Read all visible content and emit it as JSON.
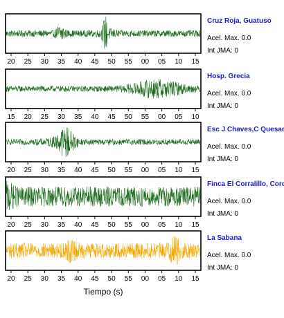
{
  "chart_data": {
    "type": "line",
    "xlabel": "Tiempo (s)",
    "panels": [
      {
        "station": "Cruz Roja, Guatuso",
        "acel_label": "Acel. Max. 0.0",
        "jma_label": "Int JMA: 0",
        "color": "#1a6b1a",
        "tick_labels": [
          "20",
          "25",
          "30",
          "35",
          "40",
          "45",
          "50",
          "55",
          "00",
          "05",
          "10",
          "15"
        ],
        "amplitude": 0.18,
        "bursts": [
          {
            "at": 0.28,
            "width": 0.015,
            "gain": 3.2
          },
          {
            "at": 0.51,
            "width": 0.008,
            "gain": 5.0
          },
          {
            "at": 0.52,
            "width": 0.03,
            "gain": 1.8
          }
        ]
      },
      {
        "station": "Hosp. Grecia",
        "acel_label": "Acel. Max. 0.0",
        "jma_label": "Int JMA: 0",
        "color": "#1a6b1a",
        "tick_labels": [
          "15",
          "20",
          "25",
          "30",
          "35",
          "40",
          "45",
          "50",
          "55",
          "00",
          "05",
          "10"
        ],
        "amplitude": 0.16,
        "bursts": [
          {
            "at": 0.78,
            "width": 0.09,
            "gain": 3.5
          }
        ]
      },
      {
        "station": "Esc J Chaves,C Quesada",
        "acel_label": "Acel. Max. 0.0",
        "jma_label": "Int JMA: 0",
        "color": "#1a6b1a",
        "tick_labels": [
          "20",
          "25",
          "30",
          "35",
          "40",
          "45",
          "50",
          "55",
          "00",
          "05",
          "10",
          "15"
        ],
        "amplitude": 0.16,
        "bursts": [
          {
            "at": 0.31,
            "width": 0.03,
            "gain": 5.0
          },
          {
            "at": 0.27,
            "width": 0.05,
            "gain": 1.8
          }
        ]
      },
      {
        "station": "Finca El Corralillo, Coronado",
        "acel_label": "Acel. Max. 0.0",
        "jma_label": "Int JMA: 0",
        "color": "#1a6b1a",
        "tick_labels": [
          "20",
          "25",
          "30",
          "35",
          "40",
          "45",
          "50",
          "55",
          "00",
          "05",
          "10",
          "15"
        ],
        "amplitude": 0.55,
        "bursts": [
          {
            "at": 0.01,
            "width": 0.02,
            "gain": 1.6
          }
        ]
      },
      {
        "station": "La Sabana",
        "acel_label": "Acel. Max. 0.0",
        "jma_label": "Int JMA: 0",
        "color": "#f5a800",
        "tick_labels": [
          "20",
          "25",
          "30",
          "35",
          "40",
          "45",
          "50",
          "55",
          "00",
          "05",
          "10",
          "15"
        ],
        "amplitude": 0.42,
        "bursts": [
          {
            "at": 0.33,
            "width": 0.02,
            "gain": 1.6
          },
          {
            "at": 0.87,
            "width": 0.02,
            "gain": 2.0
          }
        ]
      }
    ]
  }
}
